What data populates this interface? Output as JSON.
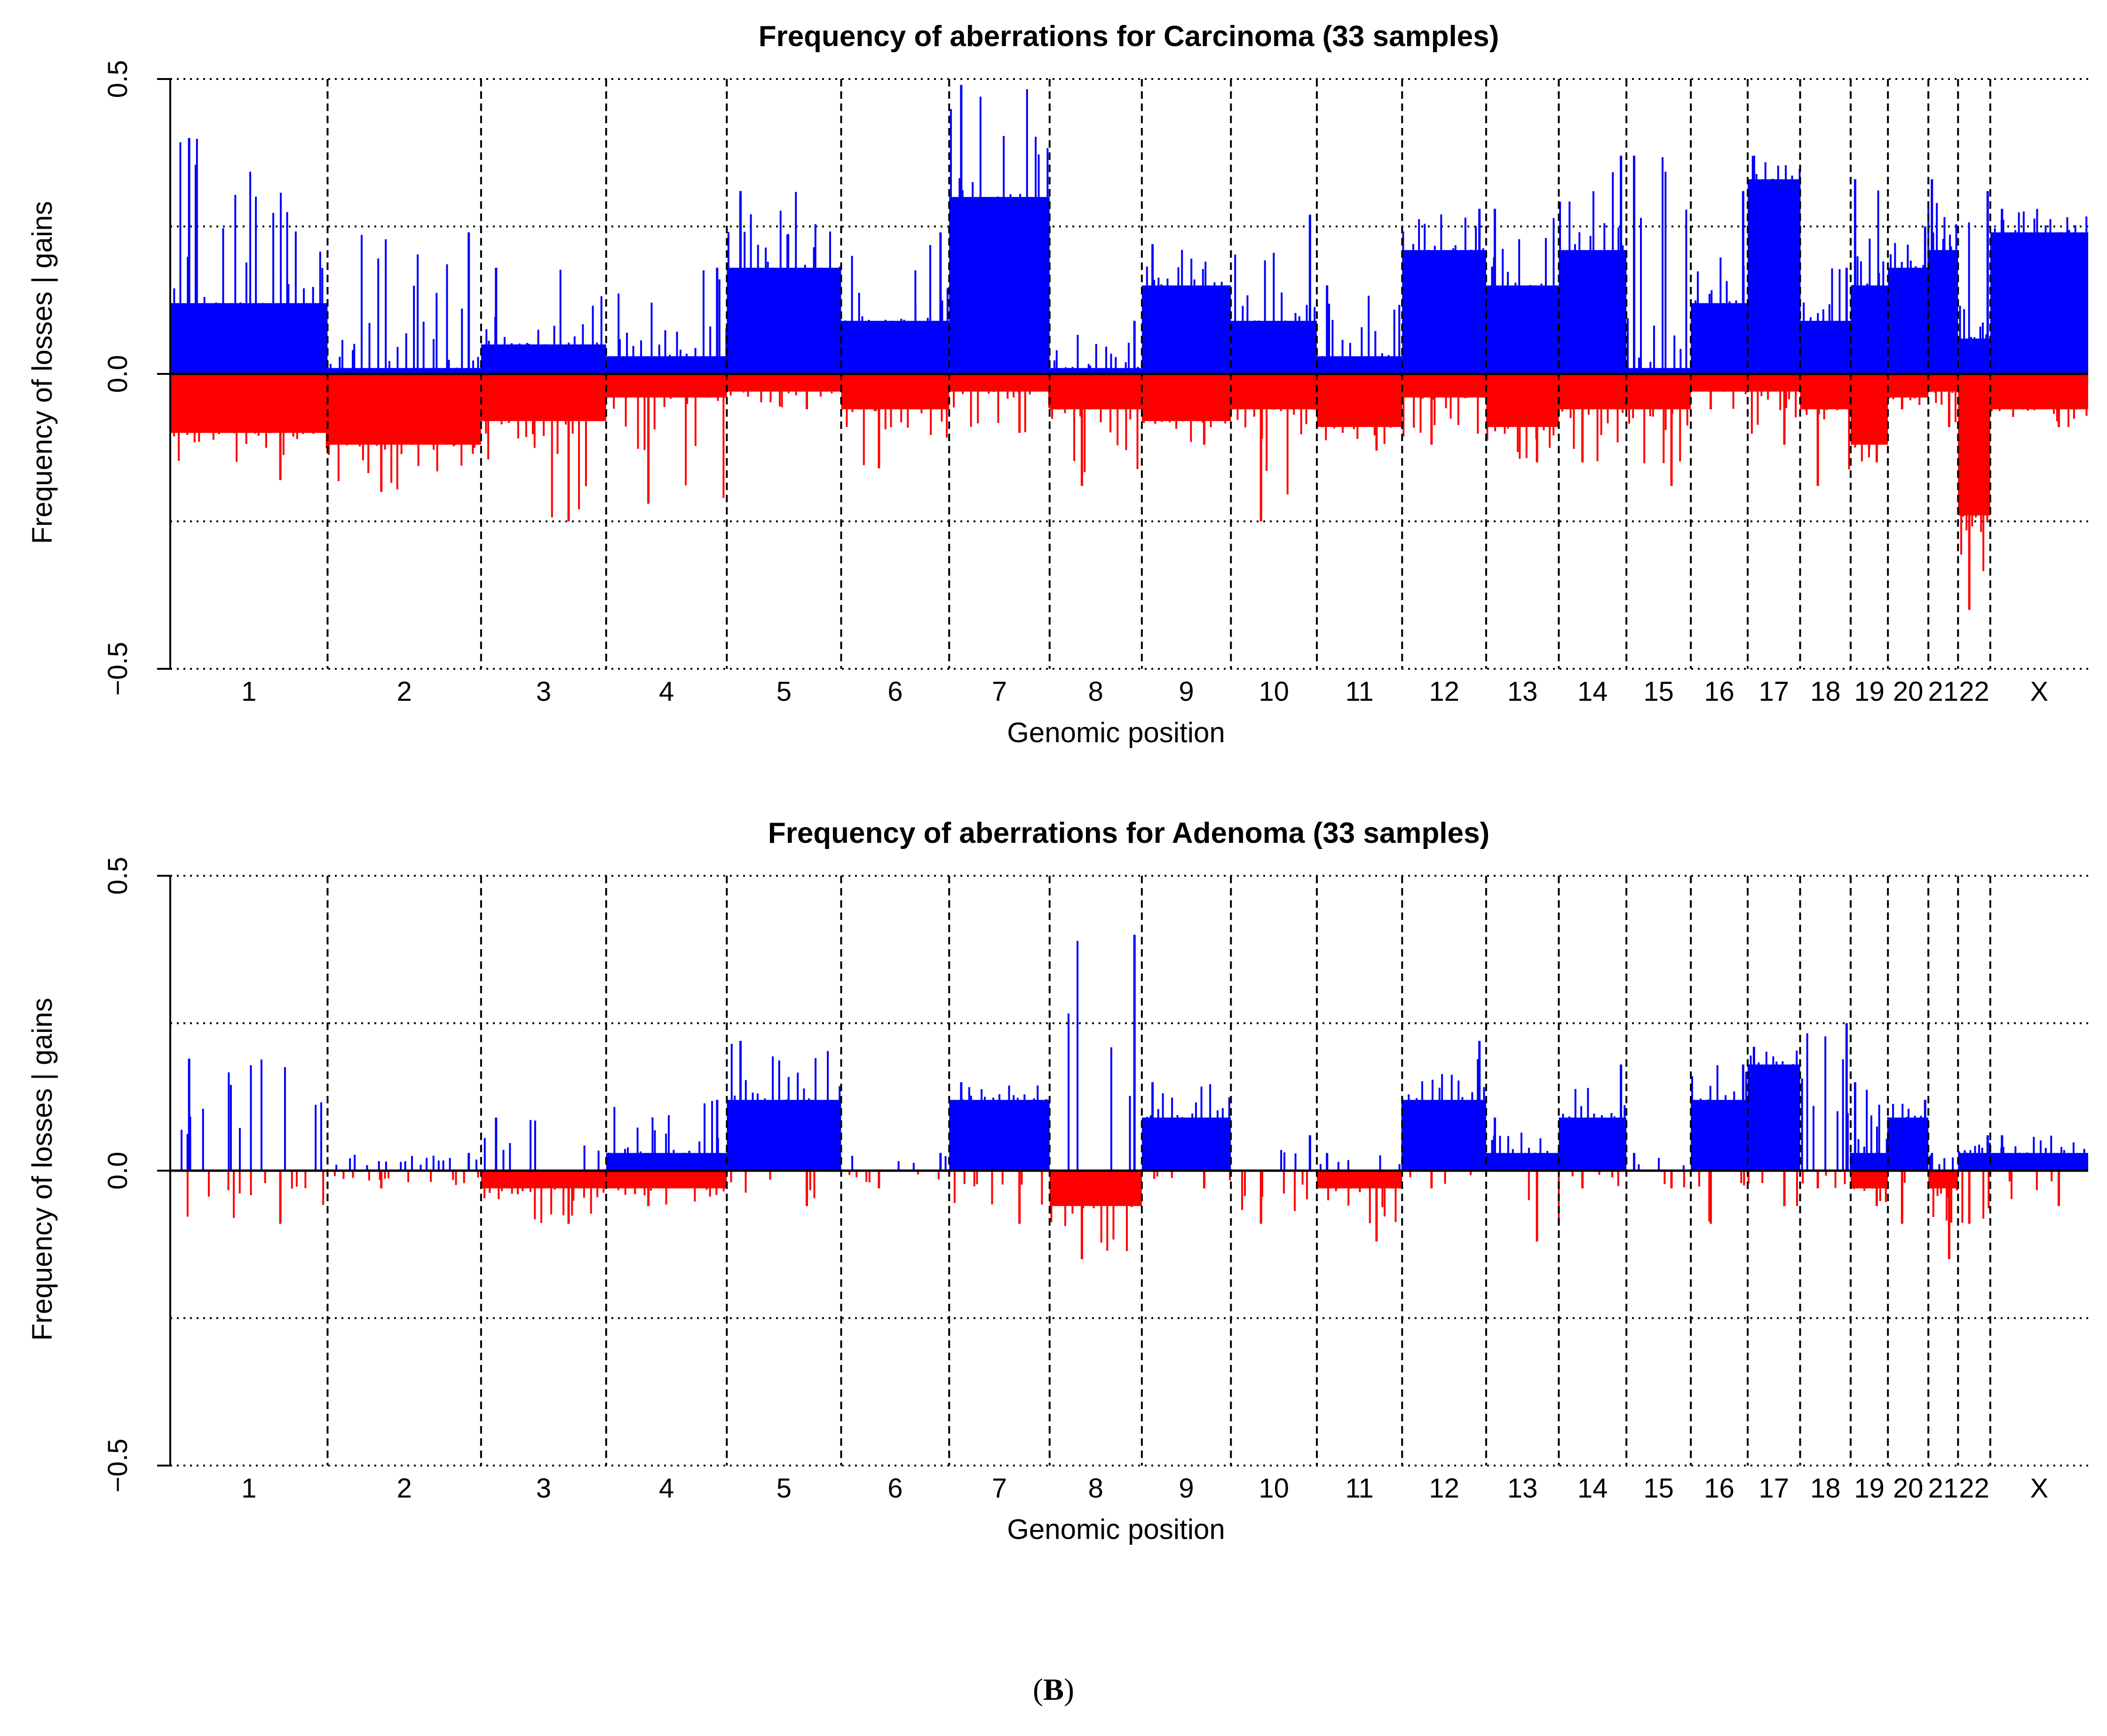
{
  "figure_label": {
    "open": "(",
    "letter": "B",
    "close": ")"
  },
  "chart_data": [
    {
      "type": "bar",
      "title": "Frequency of aberrations for Carcinoma (33 samples)",
      "xlabel": "Genomic position",
      "ylabel": "Frequency of losses | gains",
      "ylim": [
        -0.5,
        0.5
      ],
      "yticks": [
        "−0.5",
        "0.0",
        "0.5"
      ],
      "gridlines": [
        -0.5,
        -0.25,
        0.25,
        0.5
      ],
      "colors": {
        "gain": "#0000FF",
        "loss": "#FF0000",
        "axis": "#000000"
      },
      "chromosomes": [
        "1",
        "2",
        "3",
        "4",
        "5",
        "6",
        "7",
        "8",
        "9",
        "10",
        "11",
        "12",
        "13",
        "14",
        "15",
        "16",
        "17",
        "18",
        "19",
        "20",
        "21",
        "22",
        "X"
      ],
      "chromosome_lengths_mb": [
        249,
        243,
        198,
        191,
        181,
        171,
        159,
        146,
        141,
        136,
        135,
        133,
        115,
        107,
        102,
        90,
        83,
        80,
        59,
        64,
        47,
        51,
        155
      ],
      "gain_baseline": [
        0.12,
        0.01,
        0.05,
        0.03,
        0.18,
        0.09,
        0.3,
        0.01,
        0.15,
        0.09,
        0.03,
        0.21,
        0.15,
        0.21,
        0.01,
        0.12,
        0.33,
        0.09,
        0.15,
        0.18,
        0.21,
        0.06,
        0.24
      ],
      "loss_baseline": [
        -0.1,
        -0.12,
        -0.08,
        -0.04,
        -0.03,
        -0.06,
        -0.03,
        -0.06,
        -0.08,
        -0.06,
        -0.09,
        -0.04,
        -0.09,
        -0.06,
        -0.06,
        -0.03,
        -0.03,
        -0.06,
        -0.12,
        -0.04,
        -0.03,
        -0.24,
        -0.06
      ],
      "peak_gain": [
        0.4,
        0.24,
        0.18,
        0.18,
        0.31,
        0.24,
        0.49,
        0.09,
        0.22,
        0.27,
        0.15,
        0.28,
        0.28,
        0.37,
        0.37,
        0.31,
        0.37,
        0.18,
        0.33,
        0.25,
        0.33,
        0.31,
        0.28
      ],
      "peak_loss": [
        -0.18,
        -0.2,
        -0.25,
        -0.22,
        -0.06,
        -0.16,
        -0.1,
        -0.19,
        -0.12,
        -0.25,
        -0.13,
        -0.12,
        -0.15,
        -0.15,
        -0.19,
        -0.06,
        -0.12,
        -0.19,
        -0.15,
        -0.06,
        -0.09,
        -0.4,
        -0.09
      ]
    },
    {
      "type": "bar",
      "title": "Frequency of aberrations for Adenoma (33 samples)",
      "xlabel": "Genomic position",
      "ylabel": "Frequency of losses | gains",
      "ylim": [
        -0.5,
        0.5
      ],
      "yticks": [
        "−0.5",
        "0.0",
        "0.5"
      ],
      "gridlines": [
        -0.5,
        -0.25,
        0.25,
        0.5
      ],
      "colors": {
        "gain": "#0000FF",
        "loss": "#FF0000",
        "axis": "#000000"
      },
      "chromosomes": [
        "1",
        "2",
        "3",
        "4",
        "5",
        "6",
        "7",
        "8",
        "9",
        "10",
        "11",
        "12",
        "13",
        "14",
        "15",
        "16",
        "17",
        "18",
        "19",
        "20",
        "21",
        "22",
        "X"
      ],
      "chromosome_lengths_mb": [
        249,
        243,
        198,
        191,
        181,
        171,
        159,
        146,
        141,
        136,
        135,
        133,
        115,
        107,
        102,
        90,
        83,
        80,
        59,
        64,
        47,
        51,
        155
      ],
      "gain_baseline": [
        0.0,
        0.0,
        0.0,
        0.03,
        0.12,
        0.0,
        0.12,
        0.0,
        0.09,
        0.0,
        0.0,
        0.12,
        0.03,
        0.09,
        0.0,
        0.12,
        0.18,
        0.0,
        0.03,
        0.09,
        0.0,
        0.03,
        0.03
      ],
      "loss_baseline": [
        0.0,
        0.0,
        -0.03,
        -0.03,
        0.0,
        0.0,
        0.0,
        -0.06,
        0.0,
        0.0,
        -0.03,
        0.0,
        0.0,
        0.0,
        0.0,
        0.0,
        0.0,
        0.0,
        -0.03,
        0.0,
        -0.03,
        0.0,
        0.0
      ],
      "peak_gain": [
        0.19,
        0.03,
        0.09,
        0.12,
        0.22,
        0.03,
        0.15,
        0.4,
        0.15,
        0.06,
        0.03,
        0.22,
        0.09,
        0.18,
        0.03,
        0.18,
        0.21,
        0.25,
        0.15,
        0.12,
        0.03,
        0.06,
        0.06
      ],
      "peak_loss": [
        -0.09,
        -0.03,
        -0.09,
        -0.06,
        -0.06,
        -0.03,
        -0.09,
        -0.15,
        -0.03,
        -0.09,
        -0.12,
        -0.03,
        -0.12,
        -0.03,
        -0.03,
        -0.09,
        -0.06,
        -0.03,
        -0.06,
        -0.09,
        -0.15,
        -0.09,
        -0.06
      ]
    }
  ]
}
